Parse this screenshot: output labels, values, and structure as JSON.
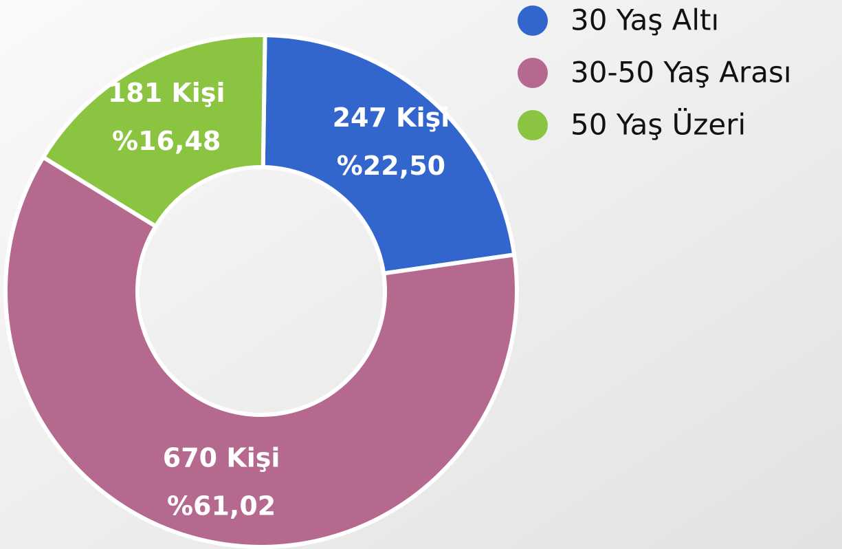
{
  "chart_data": {
    "type": "donut",
    "categories": [
      "30 Yaş Altı",
      "30-50 Yaş Arası",
      "50 Yaş Üzeri"
    ],
    "values": [
      247,
      670,
      181
    ],
    "value_labels": [
      "247 Kişi",
      "670 Kişi",
      "181 Kişi"
    ],
    "percentages": [
      22.5,
      61.02,
      16.48
    ],
    "percentage_labels": [
      "%22,50",
      "%61,02",
      "%16,48"
    ],
    "colors": [
      "#3366cc",
      "#b5698f",
      "#8bc441"
    ],
    "legend": "top-right"
  }
}
